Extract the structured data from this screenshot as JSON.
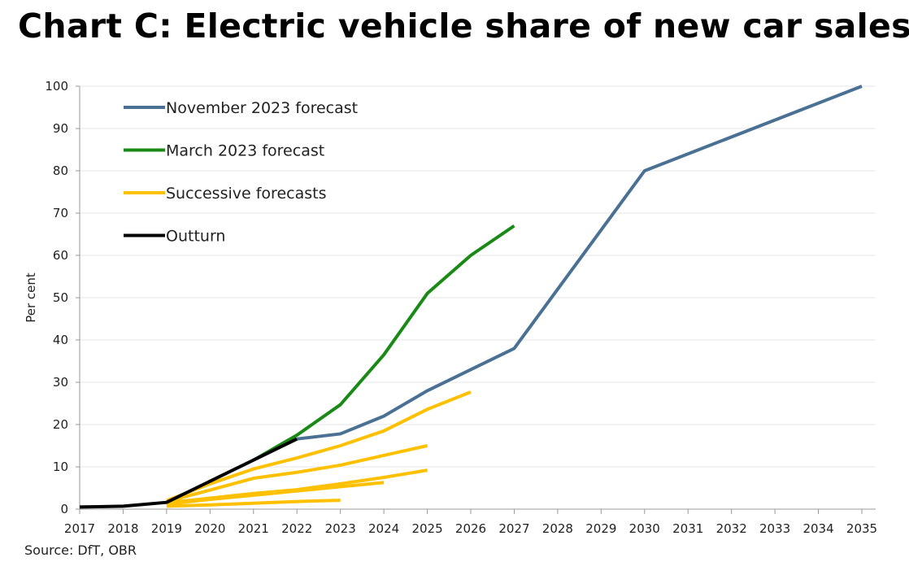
{
  "chart_data": {
    "type": "line",
    "title": "Chart C: Electric vehicle share of new car sales",
    "xlabel": "",
    "ylabel": "Per cent",
    "xlim": [
      2017,
      2035
    ],
    "ylim": [
      0,
      100
    ],
    "yticks": [
      0,
      10,
      20,
      30,
      40,
      50,
      60,
      70,
      80,
      90,
      100
    ],
    "xticks": [
      2017,
      2018,
      2019,
      2020,
      2021,
      2022,
      2023,
      2024,
      2025,
      2026,
      2027,
      2028,
      2029,
      2030,
      2031,
      2032,
      2033,
      2034,
      2035
    ],
    "grid": true,
    "legend_position": "top-left",
    "legend": [
      "November 2023 forecast",
      "March 2023 forecast",
      "Successive forecasts",
      "Outturn"
    ],
    "series": [
      {
        "name": "Successive forecasts",
        "color": "#ffc000",
        "x": [
          2019,
          2020,
          2021,
          2022,
          2023
        ],
        "y": [
          0.7,
          1.0,
          1.4,
          1.8,
          2.1
        ]
      },
      {
        "name": "Successive forecasts",
        "color": "#ffc000",
        "x": [
          2019,
          2020,
          2021,
          2022,
          2023,
          2024
        ],
        "y": [
          1.2,
          2.3,
          3.3,
          4.3,
          5.3,
          6.3
        ]
      },
      {
        "name": "Successive forecasts",
        "color": "#ffc000",
        "x": [
          2019,
          2020,
          2021,
          2022,
          2023,
          2024,
          2025
        ],
        "y": [
          1.5,
          2.6,
          3.7,
          4.6,
          6.0,
          7.5,
          9.2
        ]
      },
      {
        "name": "Successive forecasts",
        "color": "#ffc000",
        "x": [
          2019,
          2020,
          2021,
          2022,
          2023,
          2024,
          2025
        ],
        "y": [
          1.8,
          4.5,
          7.3,
          8.7,
          10.4,
          12.7,
          15.0
        ]
      },
      {
        "name": "Successive forecasts",
        "color": "#ffc000",
        "x": [
          2019,
          2020,
          2021,
          2022,
          2023,
          2024,
          2025,
          2026
        ],
        "y": [
          2.0,
          6.0,
          9.5,
          12.1,
          15.0,
          18.5,
          23.6,
          27.7
        ]
      },
      {
        "name": "November 2023 forecast",
        "color": "#4a7194",
        "x": [
          2022,
          2023,
          2024,
          2025,
          2026,
          2027,
          2030,
          2035
        ],
        "y": [
          16.6,
          17.8,
          22.0,
          28.0,
          33.0,
          38.0,
          80.0,
          100.0
        ]
      },
      {
        "name": "March 2023 forecast",
        "color": "#1a8a16",
        "x": [
          2021,
          2022,
          2023,
          2024,
          2025,
          2026,
          2027
        ],
        "y": [
          11.6,
          17.5,
          24.7,
          36.5,
          51.0,
          60.0,
          67.0
        ]
      },
      {
        "name": "Outturn",
        "color": "#000000",
        "x": [
          2017,
          2018,
          2019,
          2020,
          2021,
          2022
        ],
        "y": [
          0.5,
          0.7,
          1.6,
          6.6,
          11.6,
          16.6
        ]
      }
    ],
    "source": "Source: DfT, OBR"
  }
}
